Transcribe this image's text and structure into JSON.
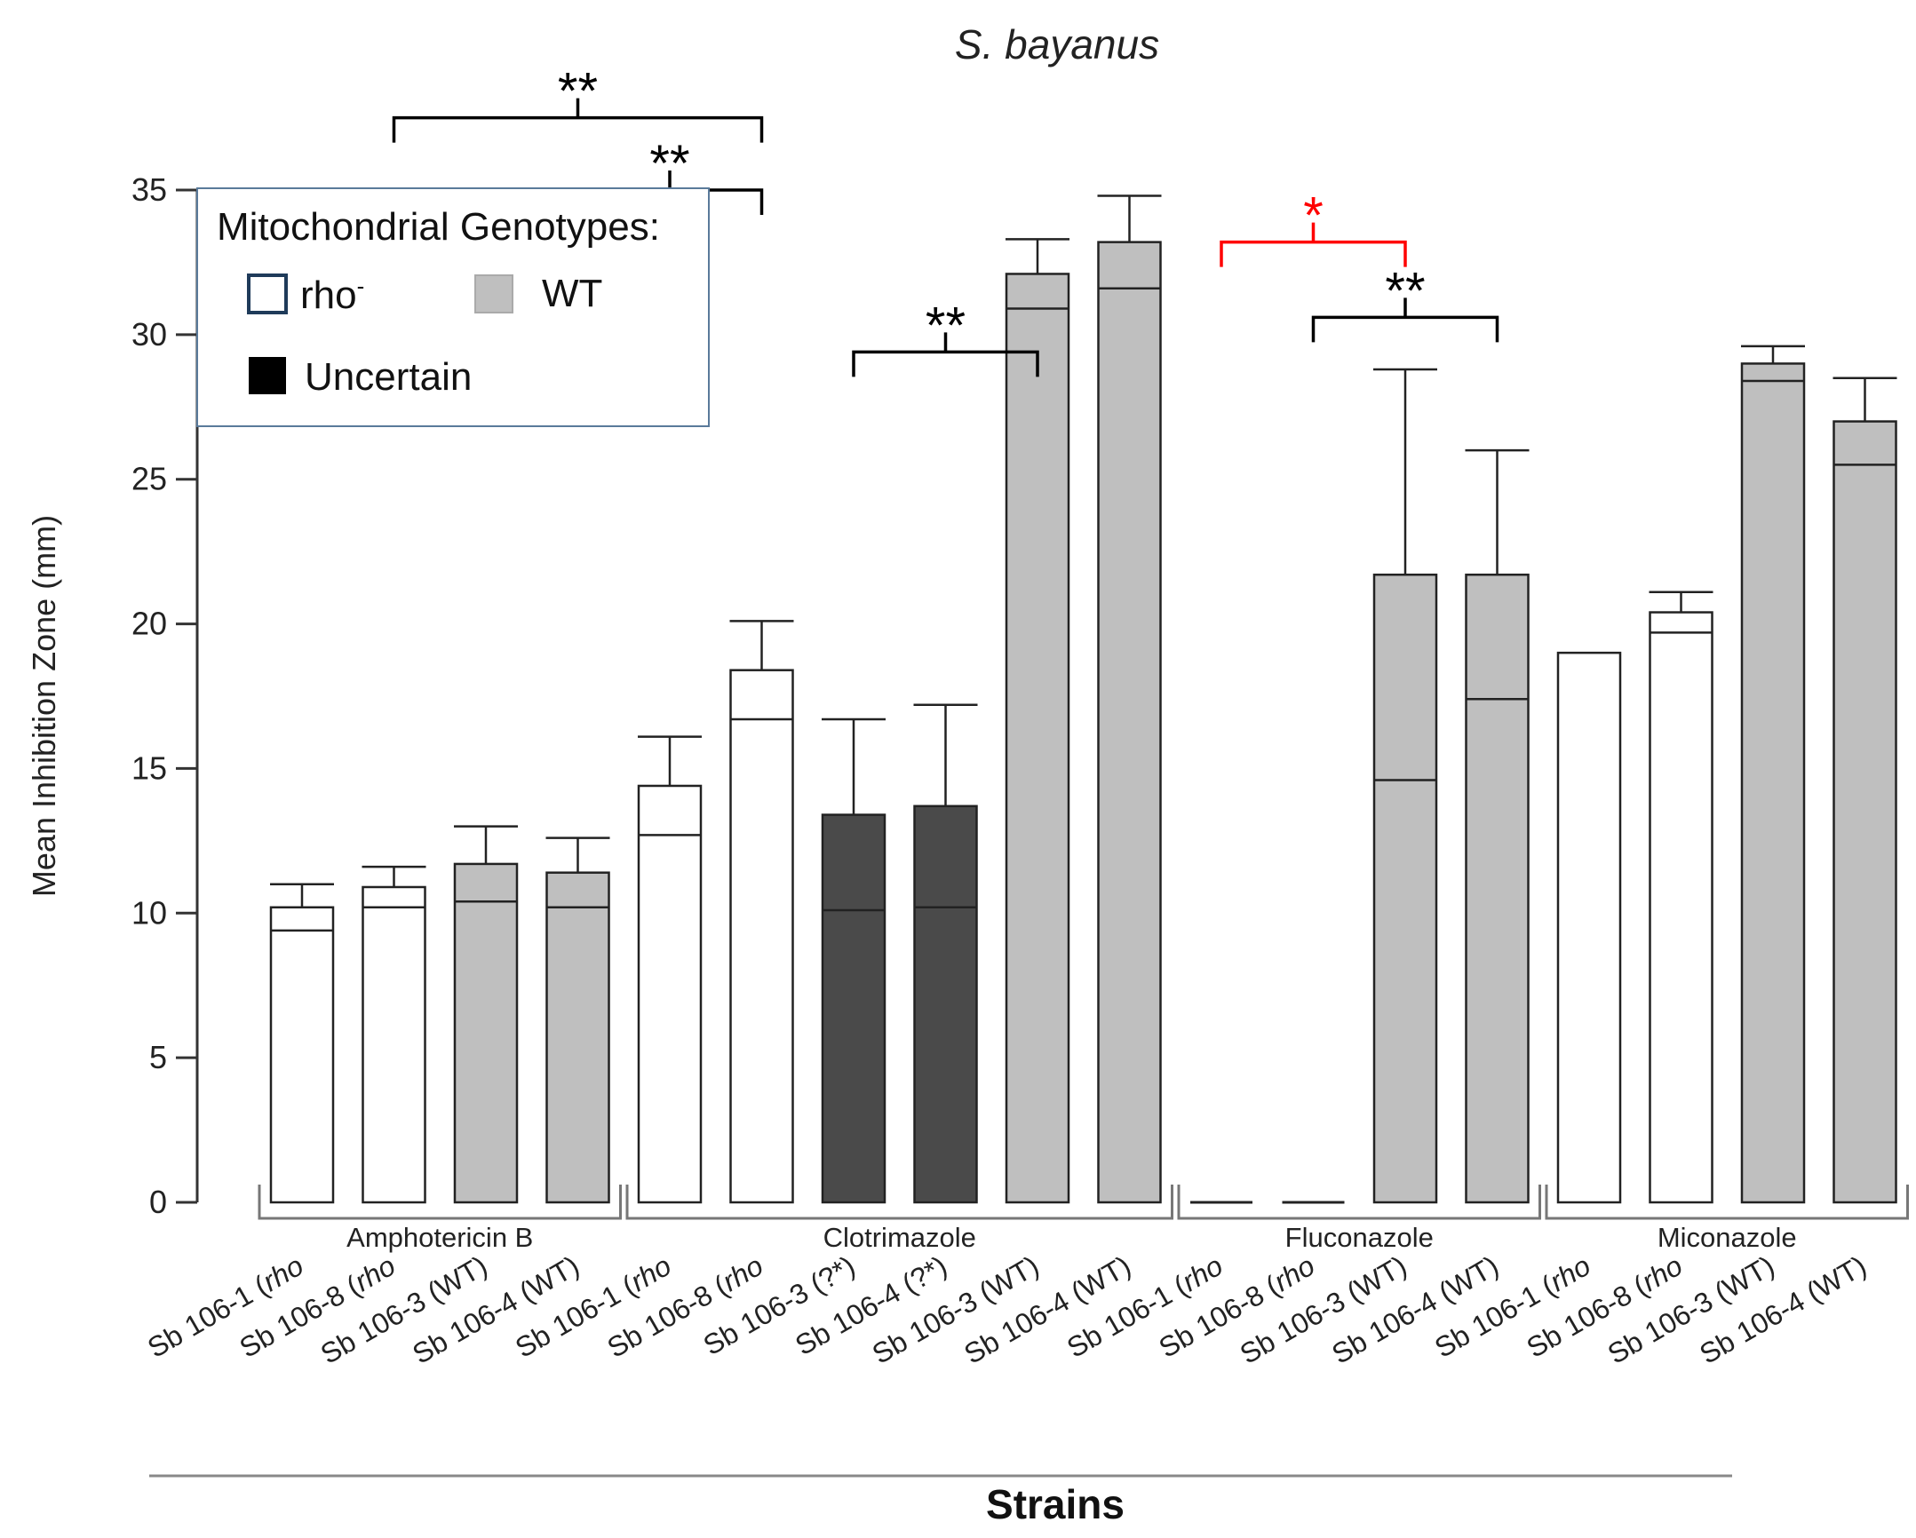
{
  "chart_data": {
    "type": "bar",
    "title": "S. bayanus",
    "ylabel": "Mean Inhibition Zone (mm)",
    "xlabel": "Strains",
    "ylim": [
      0,
      35
    ],
    "yticks": [
      0,
      5,
      10,
      15,
      20,
      25,
      30,
      35
    ],
    "legend": {
      "title": "Mitochondrial Genotypes:",
      "position": "top-left",
      "entries": [
        {
          "label": "rho",
          "superscript": "-",
          "color": "#ffffff",
          "genotype": "rho"
        },
        {
          "label": "WT",
          "color": "#bfbfbf",
          "genotype": "WT"
        },
        {
          "label": "Uncertain",
          "color": "#000000",
          "genotype": "uncertain"
        }
      ]
    },
    "genotype_colors": {
      "rho": "#ffffff",
      "WT": "#bfbfbf",
      "uncertain": "#4a4a4a"
    },
    "groups": [
      {
        "name": "Amphotericin B",
        "bars": [
          {
            "strain": "Sb 106-1",
            "tag": "rho",
            "italic": true,
            "genotype": "rho",
            "mean": 10.2,
            "err": 0.8,
            "line": 9.4
          },
          {
            "strain": "Sb 106-8",
            "tag": "rho",
            "italic": true,
            "genotype": "rho",
            "mean": 10.9,
            "err": 0.7,
            "line": 10.2
          },
          {
            "strain": "Sb 106-3",
            "tag": "WT",
            "italic": false,
            "genotype": "WT",
            "mean": 11.7,
            "err": 1.3,
            "line": 10.4
          },
          {
            "strain": "Sb 106-4",
            "tag": "WT",
            "italic": false,
            "genotype": "WT",
            "mean": 11.4,
            "err": 1.2,
            "line": 10.2
          }
        ]
      },
      {
        "name": "Clotrimazole",
        "bars": [
          {
            "strain": "Sb 106-1",
            "tag": "rho",
            "italic": true,
            "genotype": "rho",
            "mean": 14.4,
            "err": 1.7,
            "line": 12.7
          },
          {
            "strain": "Sb 106-8",
            "tag": "rho",
            "italic": true,
            "genotype": "rho",
            "mean": 18.4,
            "err": 1.7,
            "line": 16.7
          },
          {
            "strain": "Sb 106-3",
            "tag": "?*",
            "italic": false,
            "genotype": "uncertain",
            "mean": 13.4,
            "err": 3.3,
            "line": 10.1
          },
          {
            "strain": "Sb 106-4",
            "tag": "?*",
            "italic": false,
            "genotype": "uncertain",
            "mean": 13.7,
            "err": 3.5,
            "line": 10.2
          },
          {
            "strain": "Sb 106-3",
            "tag": "WT",
            "italic": false,
            "genotype": "WT",
            "mean": 32.1,
            "err": 1.2,
            "line": 30.9
          },
          {
            "strain": "Sb 106-4",
            "tag": "WT",
            "italic": false,
            "genotype": "WT",
            "mean": 33.2,
            "err": 1.6,
            "line": 31.6
          }
        ]
      },
      {
        "name": "Fluconazole",
        "bars": [
          {
            "strain": "Sb 106-1",
            "tag": "rho",
            "italic": true,
            "genotype": "rho",
            "mean": 0,
            "err": 0,
            "line": null
          },
          {
            "strain": "Sb 106-8",
            "tag": "rho",
            "italic": true,
            "genotype": "rho",
            "mean": 0,
            "err": 0,
            "line": null
          },
          {
            "strain": "Sb 106-3",
            "tag": "WT",
            "italic": false,
            "genotype": "WT",
            "mean": 21.7,
            "err": 7.1,
            "line": 14.6
          },
          {
            "strain": "Sb 106-4",
            "tag": "WT",
            "italic": false,
            "genotype": "WT",
            "mean": 21.7,
            "err": 4.3,
            "line": 17.4
          }
        ]
      },
      {
        "name": "Miconazole",
        "bars": [
          {
            "strain": "Sb 106-1",
            "tag": "rho",
            "italic": true,
            "genotype": "rho",
            "mean": 19.0,
            "err": 0,
            "line": null
          },
          {
            "strain": "Sb 106-8",
            "tag": "rho",
            "italic": true,
            "genotype": "rho",
            "mean": 20.4,
            "err": 0.7,
            "line": 19.7
          },
          {
            "strain": "Sb 106-3",
            "tag": "WT",
            "italic": false,
            "genotype": "WT",
            "mean": 29.0,
            "err": 0.6,
            "line": 28.4
          },
          {
            "strain": "Sb 106-4",
            "tag": "WT",
            "italic": false,
            "genotype": "WT",
            "mean": 27.0,
            "err": 1.5,
            "line": 25.5
          }
        ]
      }
    ],
    "significance": [
      {
        "label": "**",
        "color": "#000000",
        "from_bar": 1,
        "to_bar": 5,
        "at_value": 37.5
      },
      {
        "label": "**",
        "color": "#000000",
        "from_bar": 3,
        "to_bar": 5,
        "at_value": 35.0
      },
      {
        "label": "**",
        "color": "#000000",
        "from_bar": 6,
        "to_bar": 8,
        "at_value": 29.4
      },
      {
        "label": "*",
        "color": "#ff0000",
        "from_bar": 10,
        "to_bar": 12,
        "at_value": 33.2
      },
      {
        "label": "**",
        "color": "#000000",
        "from_bar": 11,
        "to_bar": 13,
        "at_value": 30.6
      }
    ]
  }
}
